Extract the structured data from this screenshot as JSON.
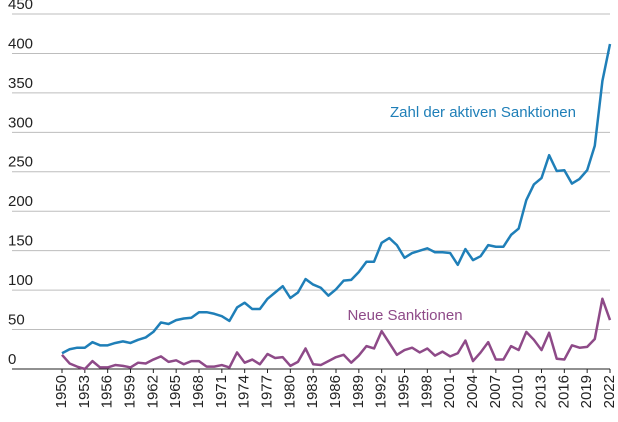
{
  "chart_data": {
    "type": "line",
    "x": [
      1950,
      1951,
      1952,
      1953,
      1954,
      1955,
      1956,
      1957,
      1958,
      1959,
      1960,
      1961,
      1962,
      1963,
      1964,
      1965,
      1966,
      1967,
      1968,
      1969,
      1970,
      1971,
      1972,
      1973,
      1974,
      1975,
      1976,
      1977,
      1978,
      1979,
      1980,
      1981,
      1982,
      1983,
      1984,
      1985,
      1986,
      1987,
      1988,
      1989,
      1990,
      1991,
      1992,
      1993,
      1994,
      1995,
      1996,
      1997,
      1998,
      1999,
      2000,
      2001,
      2002,
      2003,
      2004,
      2005,
      2006,
      2007,
      2008,
      2009,
      2010,
      2011,
      2012,
      2013,
      2014,
      2015,
      2016,
      2017,
      2018,
      2019,
      2020,
      2021,
      2022
    ],
    "series": [
      {
        "name": "Zahl der aktiven Sanktionen",
        "color": "#1f7fb8",
        "values": [
          20,
          25,
          27,
          27,
          34,
          30,
          30,
          33,
          35,
          33,
          37,
          40,
          47,
          59,
          57,
          62,
          64,
          65,
          72,
          72,
          70,
          67,
          61,
          78,
          84,
          76,
          76,
          89,
          97,
          105,
          90,
          97,
          114,
          107,
          103,
          93,
          101,
          112,
          113,
          123,
          136,
          136,
          160,
          166,
          157,
          141,
          147,
          150,
          153,
          148,
          148,
          147,
          132,
          152,
          138,
          143,
          157,
          155,
          155,
          170,
          178,
          214,
          234,
          242,
          271,
          251,
          252,
          235,
          241,
          252,
          283,
          365,
          412
        ]
      },
      {
        "name": "Neue Sanktionen",
        "color": "#8e4a88",
        "values": [
          18,
          7,
          3,
          0,
          10,
          2,
          2,
          5,
          4,
          2,
          8,
          7,
          12,
          16,
          9,
          11,
          6,
          10,
          10,
          3,
          3,
          5,
          2,
          21,
          8,
          12,
          6,
          19,
          14,
          15,
          4,
          9,
          26,
          6,
          5,
          10,
          15,
          18,
          8,
          17,
          29,
          26,
          48,
          33,
          18,
          24,
          27,
          21,
          26,
          17,
          22,
          16,
          20,
          36,
          10,
          21,
          34,
          12,
          12,
          29,
          24,
          47,
          37,
          24,
          46,
          13,
          12,
          30,
          27,
          28,
          38,
          89,
          62
        ]
      }
    ],
    "xlim": [
      1950,
      2022
    ],
    "xticks": [
      1950,
      1953,
      1956,
      1959,
      1962,
      1965,
      1968,
      1971,
      1974,
      1977,
      1980,
      1983,
      1986,
      1989,
      1992,
      1995,
      1998,
      2001,
      2004,
      2007,
      2010,
      2013,
      2016,
      2019,
      2022
    ],
    "ylim": [
      0,
      450
    ],
    "yticks": [
      0,
      50,
      100,
      150,
      200,
      250,
      300,
      350,
      400,
      450
    ],
    "grid": true
  }
}
